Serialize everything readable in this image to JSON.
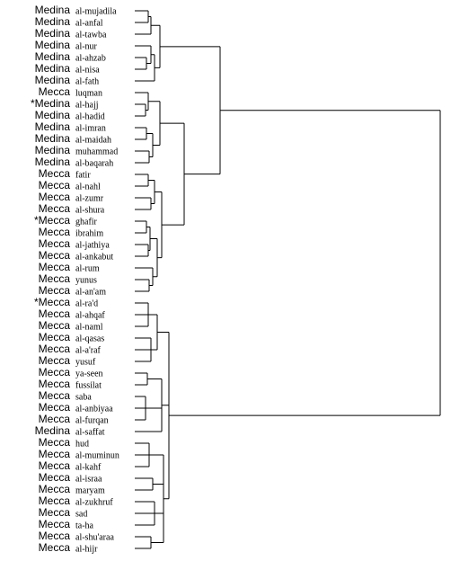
{
  "leaves": [
    {
      "place": "Medina",
      "name": "al-mujadila"
    },
    {
      "place": "Medina",
      "name": "al-anfal"
    },
    {
      "place": "Medina",
      "name": "al-tawba"
    },
    {
      "place": "Medina",
      "name": "al-nur"
    },
    {
      "place": "Medina",
      "name": "al-ahzab"
    },
    {
      "place": "Medina",
      "name": "al-nisa"
    },
    {
      "place": "Medina",
      "name": "al-fath"
    },
    {
      "place": "Mecca",
      "name": "luqman"
    },
    {
      "place": "*Medina",
      "name": "al-hajj"
    },
    {
      "place": "Medina",
      "name": "al-hadid"
    },
    {
      "place": "Medina",
      "name": "al-imran"
    },
    {
      "place": "Medina",
      "name": "al-maidah"
    },
    {
      "place": "Medina",
      "name": "muhammad"
    },
    {
      "place": "Medina",
      "name": "al-baqarah"
    },
    {
      "place": "Mecca",
      "name": "fatir"
    },
    {
      "place": "Mecca",
      "name": "al-nahl"
    },
    {
      "place": "Mecca",
      "name": "al-zumr"
    },
    {
      "place": "Mecca",
      "name": "al-shura"
    },
    {
      "place": "*Mecca",
      "name": "ghafir"
    },
    {
      "place": "Mecca",
      "name": "ibrahim"
    },
    {
      "place": "Mecca",
      "name": "al-jathiya"
    },
    {
      "place": "Mecca",
      "name": "al-ankabut"
    },
    {
      "place": "Mecca",
      "name": "al-rum"
    },
    {
      "place": "Mecca",
      "name": "yunus"
    },
    {
      "place": "Mecca",
      "name": "al-an'am"
    },
    {
      "place": "*Mecca",
      "name": "al-ra'd"
    },
    {
      "place": "Mecca",
      "name": "al-ahqaf"
    },
    {
      "place": "Mecca",
      "name": "al-naml"
    },
    {
      "place": "Mecca",
      "name": "al-qasas"
    },
    {
      "place": "Mecca",
      "name": "al-a'raf"
    },
    {
      "place": "Mecca",
      "name": "yusuf"
    },
    {
      "place": "Mecca",
      "name": "ya-seen"
    },
    {
      "place": "Mecca",
      "name": "fussilat"
    },
    {
      "place": "Mecca",
      "name": "saba"
    },
    {
      "place": "Mecca",
      "name": "al-anbiyaa"
    },
    {
      "place": "Mecca",
      "name": "al-furqan"
    },
    {
      "place": "Medina",
      "name": "al-saffat"
    },
    {
      "place": "Mecca",
      "name": "hud"
    },
    {
      "place": "Mecca",
      "name": "al-muminun"
    },
    {
      "place": "Mecca",
      "name": "al-kahf"
    },
    {
      "place": "Mecca",
      "name": "al-israa"
    },
    {
      "place": "Mecca",
      "name": "maryam"
    },
    {
      "place": "Mecca",
      "name": "al-zukhruf"
    },
    {
      "place": "Mecca",
      "name": "sad"
    },
    {
      "place": "Mecca",
      "name": "ta-ha"
    },
    {
      "place": "Mecca",
      "name": "al-shu'araa"
    },
    {
      "place": "Mecca",
      "name": "al-hijr"
    }
  ]
}
